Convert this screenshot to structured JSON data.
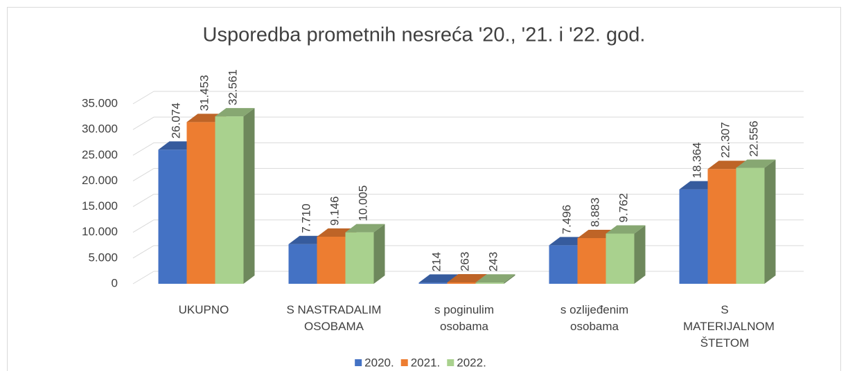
{
  "chart_data": {
    "type": "bar3d",
    "title": "Usporedba prometnih nesreća '20., '21. i '22. god.",
    "categories": [
      "UKUPNO",
      "S NASTRADALIM OSOBAMA",
      "s poginulim osobama",
      "s ozlijeđenim osobama",
      "S MATERIJALNOM ŠTETOM"
    ],
    "series": [
      {
        "name": "2020.",
        "color": "#4472c4",
        "values": [
          26074,
          7710,
          214,
          7496,
          18364
        ],
        "value_labels": [
          "26.074",
          "7.710",
          "214",
          "7.496",
          "18.364"
        ]
      },
      {
        "name": "2021.",
        "color": "#ed7d31",
        "values": [
          31453,
          9146,
          263,
          8883,
          22307
        ],
        "value_labels": [
          "31.453",
          "9.146",
          "263",
          "8.883",
          "22.307"
        ]
      },
      {
        "name": "2022.",
        "color": "#a9d18e",
        "values": [
          32561,
          10005,
          243,
          9762,
          22556
        ],
        "value_labels": [
          "32.561",
          "10.005",
          "243",
          "9.762",
          "22.556"
        ]
      }
    ],
    "ylim": [
      0,
      35000
    ],
    "yticks": [
      0,
      {
        "value": 5000,
        "label": "5.000"
      },
      {
        "value": 10000,
        "label": "10.000"
      },
      {
        "value": 15000,
        "label": "15.000"
      },
      {
        "value": 20000,
        "label": "20.000"
      },
      {
        "value": 25000,
        "label": "25.000"
      },
      {
        "value": 30000,
        "label": "30.000"
      },
      {
        "value": 35000,
        "label": "35.000"
      }
    ],
    "grid": true,
    "legend": "bottom"
  }
}
